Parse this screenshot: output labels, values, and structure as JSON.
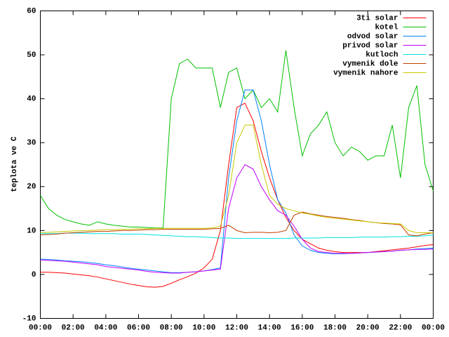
{
  "chart_data": {
    "type": "line",
    "y_label": "teplota ve C",
    "x": [
      0,
      0.5,
      1,
      1.5,
      2,
      2.5,
      3,
      3.5,
      4,
      4.5,
      5,
      5.5,
      6,
      6.5,
      7,
      7.5,
      8,
      8.5,
      9,
      9.5,
      10,
      10.5,
      11,
      11.5,
      12,
      12.5,
      13,
      13.5,
      14,
      14.5,
      15,
      15.5,
      16,
      16.5,
      17,
      17.5,
      18,
      18.5,
      19,
      19.5,
      20,
      20.5,
      21,
      21.5,
      22,
      22.5,
      23,
      23.5,
      24
    ],
    "xlim": [
      0,
      24
    ],
    "xticks": [
      {
        "value": 0,
        "label": "00:00"
      },
      {
        "value": 2,
        "label": "02:00"
      },
      {
        "value": 4,
        "label": "04:00"
      },
      {
        "value": 6,
        "label": "06:00"
      },
      {
        "value": 8,
        "label": "08:00"
      },
      {
        "value": 10,
        "label": "10:00"
      },
      {
        "value": 12,
        "label": "12:00"
      },
      {
        "value": 14,
        "label": "14:00"
      },
      {
        "value": 16,
        "label": "16:00"
      },
      {
        "value": 18,
        "label": "18:00"
      },
      {
        "value": 20,
        "label": "20:00"
      },
      {
        "value": 22,
        "label": "22:00"
      },
      {
        "value": 24,
        "label": "00:00"
      }
    ],
    "ylim": [
      -10,
      60
    ],
    "yticks": [
      -10,
      0,
      10,
      20,
      30,
      40,
      50,
      60
    ],
    "legend": "top-right",
    "series": [
      {
        "name": "3ti solar",
        "color": "#ff0000",
        "values": [
          0.5,
          0.5,
          0.4,
          0.3,
          0.1,
          -0.1,
          -0.3,
          -0.6,
          -1,
          -1.4,
          -1.8,
          -2.2,
          -2.5,
          -2.8,
          -2.9,
          -2.7,
          -2,
          -1.2,
          -0.5,
          0.3,
          1.5,
          3.5,
          10,
          25,
          38,
          39,
          35,
          28,
          22,
          17,
          13,
          10,
          8,
          7,
          6,
          5.5,
          5.2,
          5,
          5,
          5,
          5,
          5.2,
          5.4,
          5.6,
          5.8,
          6,
          6.3,
          6.6,
          6.8
        ]
      },
      {
        "name": "kotel",
        "color": "#00c000",
        "values": [
          18,
          15,
          13.5,
          12.5,
          12,
          11.5,
          11.2,
          12,
          11.5,
          11.2,
          11,
          10.8,
          10.8,
          10.7,
          10.6,
          10.6,
          40,
          48,
          49,
          47,
          47,
          47,
          38,
          46,
          47,
          40,
          42,
          38,
          40,
          37,
          51,
          38,
          27,
          32,
          34,
          37,
          30,
          27,
          29,
          28,
          26,
          27,
          27,
          34,
          22,
          38,
          43,
          25,
          19
        ]
      },
      {
        "name": "odvod solar",
        "color": "#0080ff",
        "values": [
          3.5,
          3.4,
          3.3,
          3.1,
          3,
          2.9,
          2.7,
          2.5,
          2.2,
          2,
          1.7,
          1.4,
          1.2,
          1,
          0.8,
          0.6,
          0.4,
          0.4,
          0.5,
          0.6,
          0.8,
          1.1,
          1.5,
          22,
          35,
          42,
          42,
          35,
          25,
          17,
          14,
          9,
          6.5,
          5.5,
          5,
          4.8,
          4.7,
          4.7,
          4.8,
          4.9,
          5,
          5.1,
          5.2,
          5.3,
          5.5,
          5.6,
          5.8,
          5.9,
          6
        ]
      },
      {
        "name": "privod solar",
        "color": "#c000ff",
        "values": [
          3.3,
          3.2,
          3.1,
          3,
          2.8,
          2.6,
          2.4,
          2.2,
          1.8,
          1.6,
          1.4,
          1.2,
          1,
          0.7,
          0.5,
          0.4,
          0.3,
          0.3,
          0.5,
          0.6,
          0.8,
          1,
          1.2,
          15,
          22,
          25,
          24,
          20,
          17,
          14.5,
          13.5,
          11,
          8,
          6,
          5.2,
          5,
          4.8,
          4.8,
          4.8,
          4.9,
          5,
          5.1,
          5.2,
          5.3,
          5.5,
          5.6,
          5.7,
          5.7,
          5.8
        ]
      },
      {
        "name": "kutloch",
        "color": "#00e0e0",
        "values": [
          9.3,
          9.3,
          9.3,
          9.4,
          9.4,
          9.4,
          9.3,
          9.3,
          9.3,
          9.3,
          9.2,
          9.2,
          9.2,
          9.1,
          9,
          8.9,
          8.8,
          8.7,
          8.6,
          8.6,
          8.5,
          8.4,
          8.3,
          8.3,
          8.2,
          8.2,
          8.2,
          8.2,
          8.2,
          8.2,
          8.2,
          8.3,
          8.3,
          8.3,
          8.3,
          8.4,
          8.4,
          8.4,
          8.4,
          8.5,
          8.5,
          8.5,
          8.5,
          8.6,
          8.6,
          8.7,
          8.7,
          8.8,
          9
        ]
      },
      {
        "name": "vymenik dole",
        "color": "#c04000",
        "values": [
          9,
          9.1,
          9.2,
          9.4,
          9.5,
          9.6,
          9.7,
          9.8,
          9.8,
          9.9,
          10,
          10,
          10.1,
          10.2,
          10.2,
          10.3,
          10.3,
          10.3,
          10.3,
          10.3,
          10.3,
          10.4,
          10.5,
          11.2,
          10,
          9.5,
          9.6,
          9.6,
          9.5,
          9.6,
          10,
          13.5,
          14.2,
          13.8,
          13.5,
          13.2,
          13,
          12.8,
          12.5,
          12.3,
          12,
          11.8,
          11.6,
          11.5,
          11.3,
          9,
          8.8,
          9.2,
          9.5
        ]
      },
      {
        "name": "vymenik nahore",
        "color": "#c8c800",
        "values": [
          9.5,
          9.6,
          9.7,
          9.8,
          9.9,
          10,
          10,
          10.1,
          10.2,
          10.2,
          10.3,
          10.3,
          10.4,
          10.4,
          10.5,
          10.5,
          10.5,
          10.5,
          10.5,
          10.5,
          10.5,
          10.6,
          11,
          18,
          30,
          34,
          34,
          25,
          18,
          16,
          15,
          14.5,
          14,
          13.7,
          13.3,
          13,
          12.8,
          12.6,
          12.4,
          12.2,
          12,
          11.8,
          11.7,
          11.6,
          11.5,
          10,
          9.5,
          9.5,
          9.5
        ]
      }
    ]
  }
}
